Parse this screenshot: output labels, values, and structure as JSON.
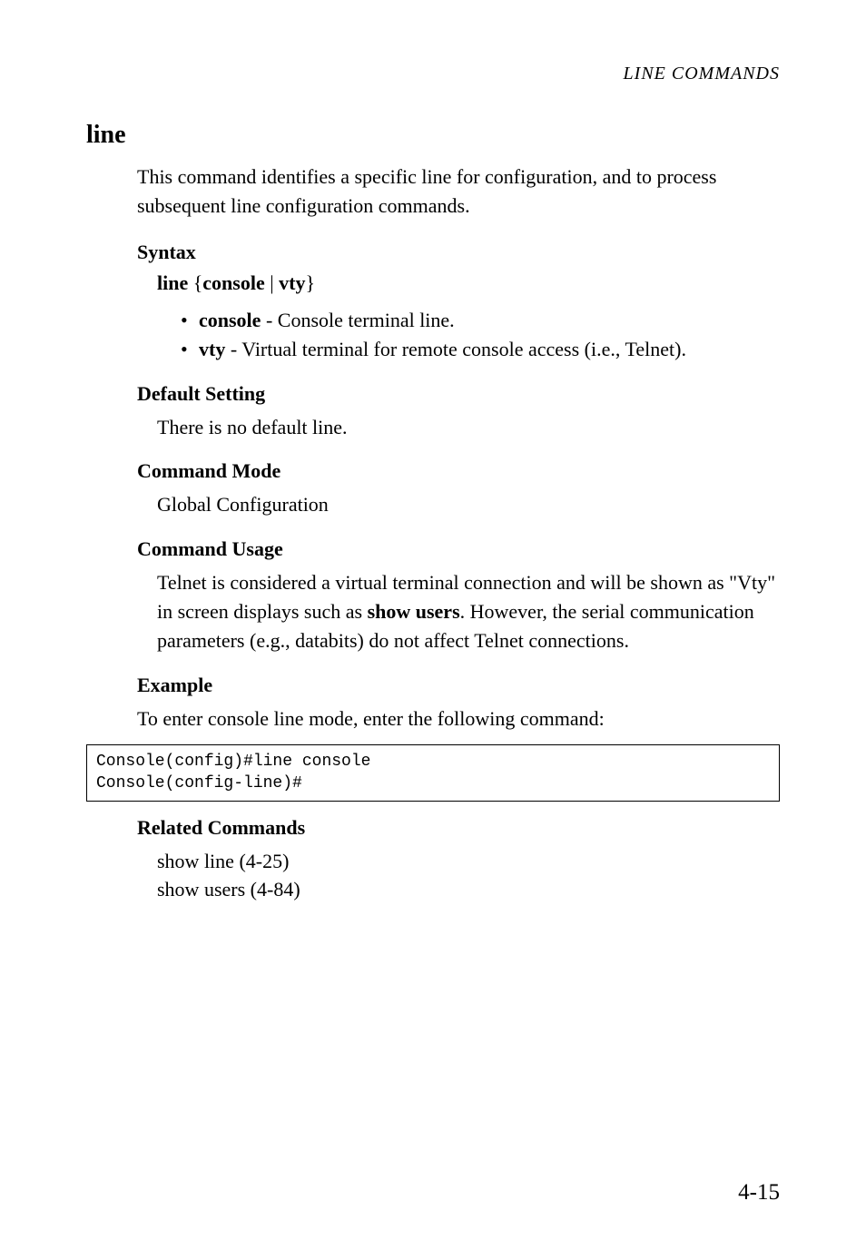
{
  "header": {
    "title": "LINE COMMANDS",
    "font_style": "italic small-caps",
    "font_size": 20,
    "alignment": "right"
  },
  "command": {
    "name": "line",
    "description": "This command identifies a specific line for configuration, and to process subsequent line configuration commands."
  },
  "sections": {
    "syntax": {
      "heading": "Syntax",
      "line_bold1": "line",
      "line_brace1": " {",
      "line_bold2": "console",
      "line_sep": " | ",
      "line_bold3": "vty",
      "line_brace2": "}",
      "bullets": [
        {
          "bold": "console",
          "rest": " - Console terminal line."
        },
        {
          "bold": "vty",
          "rest": " - Virtual terminal for remote console access (i.e., Telnet)."
        }
      ]
    },
    "default_setting": {
      "heading": "Default Setting",
      "text": "There is no default line."
    },
    "command_mode": {
      "heading": "Command Mode",
      "text": "Global Configuration"
    },
    "command_usage": {
      "heading": "Command Usage",
      "text_pre": "Telnet is considered a virtual terminal connection and will be shown as \"Vty\" in screen displays such as ",
      "text_bold": "show users",
      "text_post": ". However, the serial communication parameters (e.g., databits) do not affect Telnet connections."
    },
    "example": {
      "heading": "Example",
      "intro": "To enter console line mode, enter the following command:",
      "code": "Console(config)#line console\nConsole(config-line)#"
    },
    "related_commands": {
      "heading": "Related Commands",
      "items": [
        "show line (4-25)",
        "show users (4-84)"
      ]
    }
  },
  "page_number": "4-15",
  "colors": {
    "background": "#ffffff",
    "text": "#000000",
    "border": "#000000"
  },
  "typography": {
    "body_font": "Garamond serif",
    "code_font": "Courier New monospace",
    "body_size": 22,
    "heading_size": 22,
    "title_size": 28,
    "code_size": 18,
    "page_num_size": 25
  }
}
